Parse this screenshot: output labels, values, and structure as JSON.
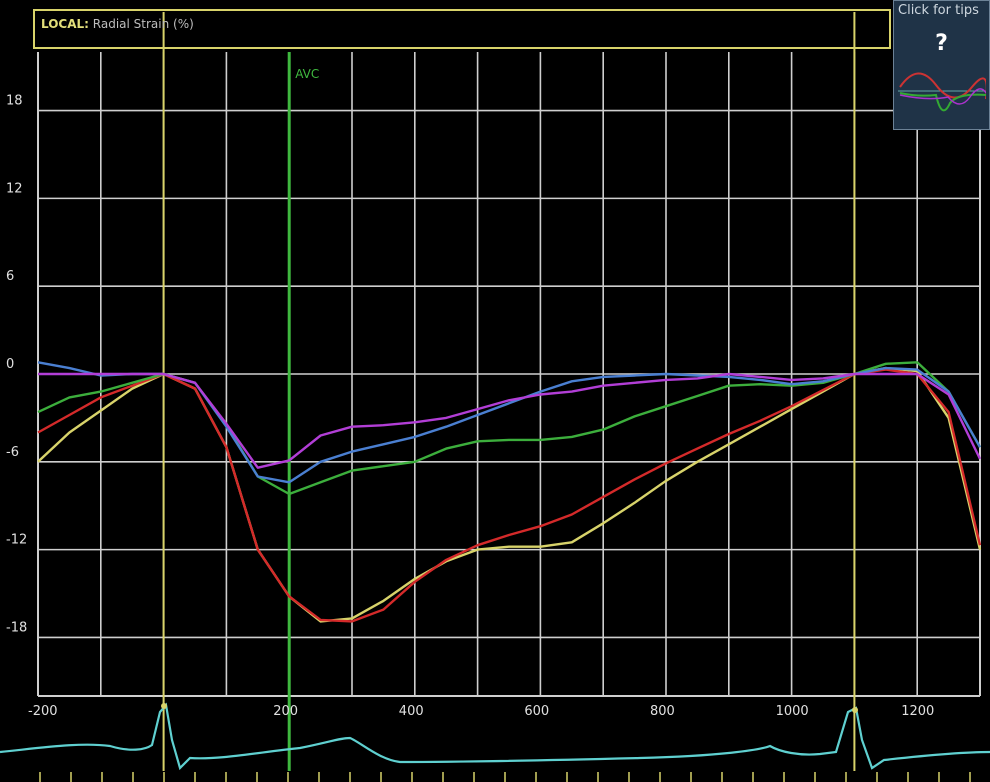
{
  "title": {
    "prefix": "LOCAL:",
    "text": "Radial Strain (%)"
  },
  "help": {
    "text": "Click for tips",
    "symbol": "?"
  },
  "avc_label": "AVC",
  "colors": {
    "grid": "#cfcfcf",
    "frame": "#d8d36a",
    "avc": "#3fb83f",
    "ecg": "#5fd0d0"
  },
  "chart_data": {
    "type": "line",
    "title": "Radial Strain (%)",
    "xlabel": "",
    "ylabel": "",
    "xlim": [
      -200,
      1300
    ],
    "ylim": [
      -22,
      22
    ],
    "x_ticks": [
      -200,
      200,
      400,
      600,
      800,
      1000,
      1200
    ],
    "y_ticks": [
      18,
      12,
      6,
      0,
      -6,
      -12,
      -18
    ],
    "grid": true,
    "markers": [
      {
        "x": 0,
        "label": ""
      },
      {
        "x": 200,
        "label": "AVC"
      },
      {
        "x": 1100,
        "label": ""
      }
    ],
    "series": [
      {
        "color": "#d8d36a",
        "x": [
          -200,
          -150,
          -100,
          -50,
          0,
          50,
          100,
          150,
          200,
          250,
          300,
          350,
          400,
          450,
          500,
          550,
          600,
          650,
          700,
          750,
          800,
          850,
          900,
          950,
          1000,
          1050,
          1100,
          1150,
          1200,
          1250,
          1300
        ],
        "y": [
          -6,
          -4,
          -2.5,
          -1,
          0,
          -1,
          -5,
          -12,
          -15.2,
          -16.9,
          -16.7,
          -15.5,
          -14,
          -12.8,
          -12,
          -11.8,
          -11.8,
          -11.5,
          -10.2,
          -8.8,
          -7.3,
          -6,
          -4.8,
          -3.6,
          -2.4,
          -1.2,
          0,
          0.4,
          0.2,
          -3,
          -12
        ]
      },
      {
        "color": "#d42a2a",
        "x": [
          -200,
          -150,
          -100,
          -50,
          0,
          50,
          100,
          150,
          200,
          250,
          300,
          350,
          400,
          450,
          500,
          550,
          600,
          650,
          700,
          750,
          800,
          850,
          900,
          950,
          1000,
          1050,
          1100,
          1150,
          1200,
          1250,
          1300
        ],
        "y": [
          -4,
          -2.8,
          -1.6,
          -0.8,
          0,
          -1,
          -5,
          -12,
          -15.2,
          -16.8,
          -16.9,
          -16.1,
          -14.2,
          -12.7,
          -11.7,
          -11,
          -10.4,
          -9.6,
          -8.4,
          -7.2,
          -6.1,
          -5.1,
          -4.1,
          -3.2,
          -2.2,
          -1.1,
          0,
          0.3,
          0,
          -2.6,
          -11.7
        ]
      },
      {
        "color": "#3cae3c",
        "x": [
          -200,
          -150,
          -100,
          -50,
          0,
          50,
          100,
          150,
          200,
          250,
          300,
          350,
          400,
          450,
          500,
          550,
          600,
          650,
          700,
          750,
          800,
          850,
          900,
          950,
          1000,
          1050,
          1100,
          1150,
          1200,
          1250,
          1300
        ],
        "y": [
          -2.6,
          -1.6,
          -1.2,
          -0.6,
          0,
          -0.6,
          -3.5,
          -7,
          -8.2,
          -7.4,
          -6.6,
          -6.3,
          -6,
          -5.1,
          -4.6,
          -4.5,
          -4.5,
          -4.3,
          -3.8,
          -2.9,
          -2.2,
          -1.5,
          -0.8,
          -0.7,
          -0.8,
          -0.6,
          0,
          0.7,
          0.8,
          -1.2,
          -5
        ]
      },
      {
        "color": "#4a7fd1",
        "x": [
          -200,
          -150,
          -100,
          -50,
          0,
          50,
          100,
          150,
          200,
          250,
          300,
          350,
          400,
          450,
          500,
          550,
          600,
          650,
          700,
          750,
          800,
          850,
          900,
          950,
          1000,
          1050,
          1100,
          1150,
          1200,
          1250,
          1300
        ],
        "y": [
          0.8,
          0.4,
          -0.1,
          0,
          0,
          -0.6,
          -3.6,
          -7,
          -7.4,
          -6,
          -5.3,
          -4.8,
          -4.3,
          -3.6,
          -2.8,
          -2,
          -1.2,
          -0.5,
          -0.2,
          -0.1,
          0,
          -0.1,
          -0.2,
          -0.4,
          -0.7,
          -0.5,
          0,
          0.4,
          0.3,
          -1.2,
          -5
        ]
      },
      {
        "color": "#b23ed6",
        "x": [
          -200,
          -150,
          -100,
          -50,
          0,
          50,
          100,
          150,
          200,
          250,
          300,
          350,
          400,
          450,
          500,
          550,
          600,
          650,
          700,
          750,
          800,
          850,
          900,
          950,
          1000,
          1050,
          1100,
          1150,
          1200,
          1250,
          1300
        ],
        "y": [
          0,
          0,
          0,
          0,
          0,
          -0.6,
          -3.4,
          -6.4,
          -5.9,
          -4.2,
          -3.6,
          -3.5,
          -3.3,
          -3,
          -2.4,
          -1.8,
          -1.4,
          -1.2,
          -0.8,
          -0.6,
          -0.4,
          -0.3,
          0,
          -0.2,
          -0.4,
          -0.3,
          0,
          0,
          0,
          -1.4,
          -5.8
        ]
      }
    ]
  }
}
